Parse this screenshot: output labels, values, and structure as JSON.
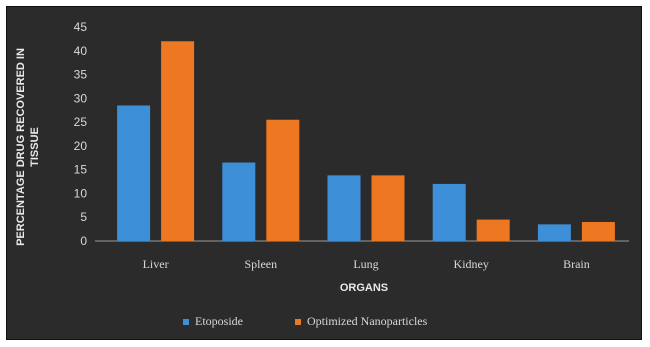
{
  "chart_data": {
    "type": "bar",
    "title": "",
    "xlabel": "ORGANS",
    "ylabel_lines": [
      "PERCENTAGE DRUG RECOVERED IN",
      "TISSUE"
    ],
    "categories": [
      "Liver",
      "Spleen",
      "Lung",
      "Kidney",
      "Brain"
    ],
    "series": [
      {
        "name": "Etoposide",
        "color": "#3d8fd8",
        "values": [
          28.5,
          16.5,
          13.8,
          12,
          3.5
        ]
      },
      {
        "name": "Optimized Nanoparticles",
        "color": "#ee7722",
        "values": [
          42,
          25.5,
          13.8,
          4.5,
          4
        ]
      }
    ],
    "ylim": [
      0,
      45
    ],
    "yticks": [
      0,
      5,
      10,
      15,
      20,
      25,
      30,
      35,
      40,
      45
    ],
    "grid": false,
    "legend_position": "bottom"
  }
}
